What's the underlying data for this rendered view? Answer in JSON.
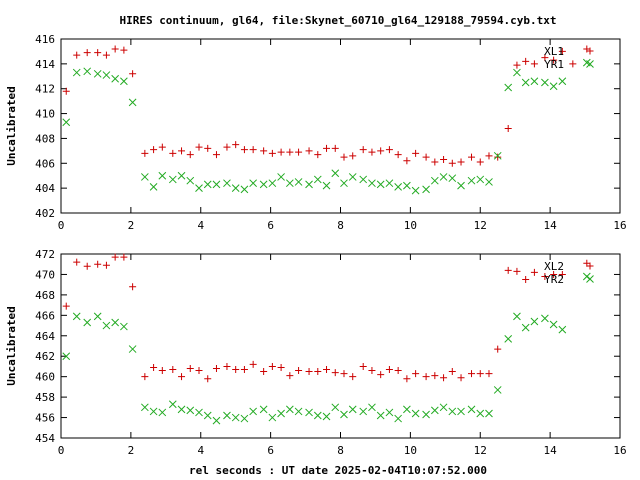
{
  "title": "HIRES continuum, gl64, file:Skynet_60710_gl64_129188_79594.cyb.txt",
  "xlabel": "rel seconds : UT date 2025-02-04T10:07:52.000",
  "colors": {
    "plus": "#cc0000",
    "cross": "#22aa22",
    "axis": "#000000"
  },
  "chart_data": [
    {
      "type": "scatter",
      "ylabel": "Uncalibrated",
      "xlim": [
        0,
        16
      ],
      "ylim": [
        402,
        416
      ],
      "xticks": [
        0,
        2,
        4,
        6,
        8,
        10,
        12,
        14,
        16
      ],
      "yticks": [
        402,
        404,
        406,
        408,
        410,
        412,
        414,
        416
      ],
      "legend_position": "top-right",
      "series": [
        {
          "name": "XL1",
          "marker": "plus",
          "points": [
            [
              0.15,
              411.8
            ],
            [
              0.45,
              414.7
            ],
            [
              0.75,
              414.9
            ],
            [
              1.05,
              414.9
            ],
            [
              1.3,
              414.7
            ],
            [
              1.55,
              415.2
            ],
            [
              1.8,
              415.1
            ],
            [
              2.05,
              413.2
            ],
            [
              2.4,
              406.8
            ],
            [
              2.65,
              407.1
            ],
            [
              2.9,
              407.3
            ],
            [
              3.2,
              406.8
            ],
            [
              3.45,
              407.0
            ],
            [
              3.7,
              406.7
            ],
            [
              3.95,
              407.3
            ],
            [
              4.2,
              407.2
            ],
            [
              4.45,
              406.7
            ],
            [
              4.75,
              407.3
            ],
            [
              5.0,
              407.5
            ],
            [
              5.25,
              407.1
            ],
            [
              5.5,
              407.1
            ],
            [
              5.8,
              407.0
            ],
            [
              6.05,
              406.8
            ],
            [
              6.3,
              406.9
            ],
            [
              6.55,
              406.9
            ],
            [
              6.8,
              406.9
            ],
            [
              7.1,
              407.0
            ],
            [
              7.35,
              406.7
            ],
            [
              7.6,
              407.2
            ],
            [
              7.85,
              407.2
            ],
            [
              8.1,
              406.5
            ],
            [
              8.35,
              406.6
            ],
            [
              8.65,
              407.1
            ],
            [
              8.9,
              406.9
            ],
            [
              9.15,
              407.0
            ],
            [
              9.4,
              407.1
            ],
            [
              9.65,
              406.7
            ],
            [
              9.9,
              406.2
            ],
            [
              10.15,
              406.8
            ],
            [
              10.45,
              406.5
            ],
            [
              10.7,
              406.1
            ],
            [
              10.95,
              406.3
            ],
            [
              11.2,
              406.0
            ],
            [
              11.45,
              406.1
            ],
            [
              11.75,
              406.5
            ],
            [
              12.0,
              406.1
            ],
            [
              12.25,
              406.6
            ],
            [
              12.5,
              406.5
            ],
            [
              12.8,
              408.8
            ],
            [
              13.05,
              413.9
            ],
            [
              13.3,
              414.2
            ],
            [
              13.55,
              414.0
            ],
            [
              13.85,
              414.5
            ],
            [
              14.1,
              414.3
            ],
            [
              14.35,
              415.0
            ],
            [
              14.65,
              414.0
            ],
            [
              15.05,
              415.2
            ]
          ]
        },
        {
          "name": "YR1",
          "marker": "cross",
          "points": [
            [
              0.15,
              409.3
            ],
            [
              0.45,
              413.3
            ],
            [
              0.75,
              413.4
            ],
            [
              1.05,
              413.2
            ],
            [
              1.3,
              413.1
            ],
            [
              1.55,
              412.8
            ],
            [
              1.8,
              412.6
            ],
            [
              2.05,
              410.9
            ],
            [
              2.4,
              404.9
            ],
            [
              2.65,
              404.1
            ],
            [
              2.9,
              405.0
            ],
            [
              3.2,
              404.7
            ],
            [
              3.45,
              405.0
            ],
            [
              3.7,
              404.6
            ],
            [
              3.95,
              404.0
            ],
            [
              4.2,
              404.3
            ],
            [
              4.45,
              404.3
            ],
            [
              4.75,
              404.4
            ],
            [
              5.0,
              404.0
            ],
            [
              5.25,
              403.9
            ],
            [
              5.5,
              404.4
            ],
            [
              5.8,
              404.3
            ],
            [
              6.05,
              404.4
            ],
            [
              6.3,
              404.9
            ],
            [
              6.55,
              404.4
            ],
            [
              6.8,
              404.5
            ],
            [
              7.1,
              404.3
            ],
            [
              7.35,
              404.7
            ],
            [
              7.6,
              404.2
            ],
            [
              7.85,
              405.2
            ],
            [
              8.1,
              404.4
            ],
            [
              8.35,
              404.9
            ],
            [
              8.65,
              404.7
            ],
            [
              8.9,
              404.4
            ],
            [
              9.15,
              404.3
            ],
            [
              9.4,
              404.4
            ],
            [
              9.65,
              404.1
            ],
            [
              9.9,
              404.2
            ],
            [
              10.15,
              403.8
            ],
            [
              10.45,
              403.9
            ],
            [
              10.7,
              404.6
            ],
            [
              10.95,
              404.9
            ],
            [
              11.2,
              404.8
            ],
            [
              11.45,
              404.2
            ],
            [
              11.75,
              404.6
            ],
            [
              12.0,
              404.7
            ],
            [
              12.25,
              404.5
            ],
            [
              12.5,
              406.6
            ],
            [
              12.8,
              412.1
            ],
            [
              13.05,
              413.3
            ],
            [
              13.3,
              412.5
            ],
            [
              13.55,
              412.6
            ],
            [
              13.85,
              412.5
            ],
            [
              14.1,
              412.2
            ],
            [
              14.35,
              412.6
            ],
            [
              15.05,
              414.1
            ]
          ]
        }
      ]
    },
    {
      "type": "scatter",
      "ylabel": "Uncalibrated",
      "xlim": [
        0,
        16
      ],
      "ylim": [
        454,
        472
      ],
      "xticks": [
        0,
        2,
        4,
        6,
        8,
        10,
        12,
        14,
        16
      ],
      "yticks": [
        454,
        456,
        458,
        460,
        462,
        464,
        466,
        468,
        470,
        472
      ],
      "legend_position": "top-right",
      "series": [
        {
          "name": "XL2",
          "marker": "plus",
          "points": [
            [
              0.15,
              466.9
            ],
            [
              0.45,
              471.2
            ],
            [
              0.75,
              470.8
            ],
            [
              1.05,
              471.0
            ],
            [
              1.3,
              470.9
            ],
            [
              1.55,
              471.7
            ],
            [
              1.8,
              471.7
            ],
            [
              2.05,
              468.8
            ],
            [
              2.4,
              460.0
            ],
            [
              2.65,
              460.9
            ],
            [
              2.9,
              460.6
            ],
            [
              3.2,
              460.7
            ],
            [
              3.45,
              460.0
            ],
            [
              3.7,
              460.8
            ],
            [
              3.95,
              460.6
            ],
            [
              4.2,
              459.8
            ],
            [
              4.45,
              460.8
            ],
            [
              4.75,
              461.0
            ],
            [
              5.0,
              460.7
            ],
            [
              5.25,
              460.7
            ],
            [
              5.5,
              461.2
            ],
            [
              5.8,
              460.5
            ],
            [
              6.05,
              461.0
            ],
            [
              6.3,
              460.9
            ],
            [
              6.55,
              460.1
            ],
            [
              6.8,
              460.6
            ],
            [
              7.1,
              460.5
            ],
            [
              7.35,
              460.5
            ],
            [
              7.6,
              460.7
            ],
            [
              7.85,
              460.4
            ],
            [
              8.1,
              460.3
            ],
            [
              8.35,
              460.0
            ],
            [
              8.65,
              461.0
            ],
            [
              8.9,
              460.6
            ],
            [
              9.15,
              460.2
            ],
            [
              9.4,
              460.7
            ],
            [
              9.65,
              460.6
            ],
            [
              9.9,
              459.8
            ],
            [
              10.15,
              460.3
            ],
            [
              10.45,
              460.0
            ],
            [
              10.7,
              460.1
            ],
            [
              10.95,
              459.9
            ],
            [
              11.2,
              460.5
            ],
            [
              11.45,
              459.9
            ],
            [
              11.75,
              460.3
            ],
            [
              12.0,
              460.3
            ],
            [
              12.25,
              460.3
            ],
            [
              12.5,
              462.7
            ],
            [
              12.8,
              470.4
            ],
            [
              13.05,
              470.3
            ],
            [
              13.3,
              469.5
            ],
            [
              13.55,
              470.2
            ],
            [
              13.85,
              469.8
            ],
            [
              14.1,
              470.0
            ],
            [
              14.35,
              470.0
            ],
            [
              15.05,
              471.1
            ]
          ]
        },
        {
          "name": "YR2",
          "marker": "cross",
          "points": [
            [
              0.15,
              462.0
            ],
            [
              0.45,
              465.9
            ],
            [
              0.75,
              465.3
            ],
            [
              1.05,
              465.9
            ],
            [
              1.3,
              465.0
            ],
            [
              1.55,
              465.3
            ],
            [
              1.8,
              464.9
            ],
            [
              2.05,
              462.7
            ],
            [
              2.4,
              457.0
            ],
            [
              2.65,
              456.6
            ],
            [
              2.9,
              456.5
            ],
            [
              3.2,
              457.3
            ],
            [
              3.45,
              456.8
            ],
            [
              3.7,
              456.7
            ],
            [
              3.95,
              456.5
            ],
            [
              4.2,
              456.2
            ],
            [
              4.45,
              455.7
            ],
            [
              4.75,
              456.2
            ],
            [
              5.0,
              456.0
            ],
            [
              5.25,
              455.9
            ],
            [
              5.5,
              456.6
            ],
            [
              5.8,
              456.8
            ],
            [
              6.05,
              456.0
            ],
            [
              6.3,
              456.4
            ],
            [
              6.55,
              456.8
            ],
            [
              6.8,
              456.6
            ],
            [
              7.1,
              456.5
            ],
            [
              7.35,
              456.2
            ],
            [
              7.6,
              456.1
            ],
            [
              7.85,
              457.0
            ],
            [
              8.1,
              456.3
            ],
            [
              8.35,
              456.8
            ],
            [
              8.65,
              456.6
            ],
            [
              8.9,
              457.0
            ],
            [
              9.15,
              456.2
            ],
            [
              9.4,
              456.5
            ],
            [
              9.65,
              455.9
            ],
            [
              9.9,
              456.8
            ],
            [
              10.15,
              456.4
            ],
            [
              10.45,
              456.3
            ],
            [
              10.7,
              456.7
            ],
            [
              10.95,
              457.0
            ],
            [
              11.2,
              456.6
            ],
            [
              11.45,
              456.6
            ],
            [
              11.75,
              456.8
            ],
            [
              12.0,
              456.4
            ],
            [
              12.25,
              456.4
            ],
            [
              12.5,
              458.7
            ],
            [
              12.8,
              463.7
            ],
            [
              13.05,
              465.9
            ],
            [
              13.3,
              464.8
            ],
            [
              13.55,
              465.4
            ],
            [
              13.85,
              465.7
            ],
            [
              14.1,
              465.1
            ],
            [
              14.35,
              464.6
            ],
            [
              15.05,
              469.8
            ]
          ]
        }
      ]
    }
  ]
}
